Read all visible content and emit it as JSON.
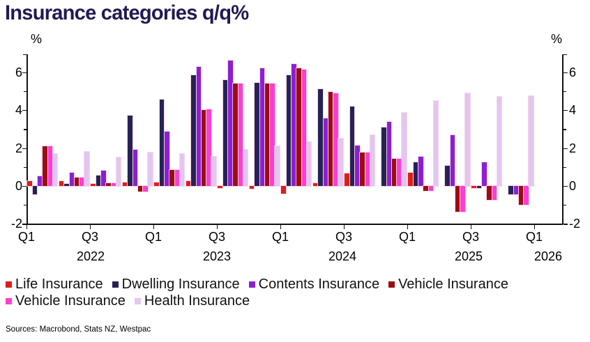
{
  "title": "Insurance categories q/q%",
  "y_axis": {
    "unit_label": "%",
    "labeled_ticks": [
      -2,
      0,
      2,
      4,
      6
    ],
    "minor_tick_step": 1,
    "min": -2,
    "max": 6.9
  },
  "x_axis": {
    "tick_labels": [
      "Q1",
      "Q3",
      "Q1",
      "Q3",
      "Q1",
      "Q3",
      "Q1",
      "Q3",
      "Q1"
    ],
    "years": [
      "2022",
      "2023",
      "2024",
      "2025",
      "2026"
    ]
  },
  "legend": {
    "rows": [
      [
        {
          "label": "Life Insurance",
          "color": "#dc1f16"
        },
        {
          "label": "Dwelling Insurance",
          "color": "#262254"
        },
        {
          "label": "Contents Insurance",
          "color": "#8c1fd1"
        },
        {
          "label": "Vehicle Insurance",
          "color": "#9a0d12"
        }
      ],
      [
        {
          "label": "Vehicle Insurance",
          "color": "#fb3ed1"
        },
        {
          "label": "Health Insurance",
          "color": "#e3c6f0"
        }
      ]
    ]
  },
  "sources": "Sources: Macrobond, Stats NZ, Westpac",
  "chart_data": {
    "type": "bar",
    "title": "Insurance categories q/q%",
    "ylabel": "%",
    "ylim": [
      -2,
      6.9
    ],
    "grid": false,
    "legend_position": "bottom",
    "categories": [
      "Q1 2022",
      "Q2 2022",
      "Q3 2022",
      "Q4 2022",
      "Q1 2023",
      "Q2 2023",
      "Q3 2023",
      "Q4 2023",
      "Q1 2024",
      "Q2 2024",
      "Q3 2024",
      "Q4 2024",
      "Q1 2025",
      "Q2 2025",
      "Q3 2025",
      "Q4 2025"
    ],
    "series": [
      {
        "name": "Life Insurance",
        "color": "#dc1f16",
        "values": [
          0.25,
          0.25,
          0.1,
          0.2,
          0.2,
          0.25,
          -0.1,
          -0.15,
          -0.4,
          0.15,
          0.65,
          null,
          0.7,
          null,
          -0.1,
          null
        ]
      },
      {
        "name": "Dwelling Insurance",
        "color": "#262254",
        "values": [
          -0.45,
          0.1,
          0.55,
          3.7,
          4.55,
          5.85,
          5.6,
          5.45,
          5.85,
          5.1,
          4.2,
          3.1,
          1.25,
          1.05,
          -0.1,
          -0.45
        ]
      },
      {
        "name": "Contents Insurance",
        "color": "#8c1fd1",
        "values": [
          0.5,
          0.7,
          0.8,
          1.9,
          2.85,
          6.3,
          6.6,
          6.2,
          6.45,
          3.55,
          2.15,
          3.4,
          1.55,
          2.7,
          1.25,
          -0.45
        ]
      },
      {
        "name": "Vehicle Insurance",
        "color": "#9a0d12",
        "values": [
          2.1,
          0.45,
          0.15,
          -0.3,
          0.85,
          4.0,
          5.4,
          5.4,
          6.2,
          4.95,
          1.75,
          1.45,
          -0.25,
          -1.35,
          -0.75,
          -1.0
        ]
      },
      {
        "name": "Vehicle Insurance",
        "color": "#fb3ed1",
        "values": [
          2.1,
          0.45,
          0.15,
          -0.3,
          0.85,
          4.05,
          5.4,
          5.4,
          6.15,
          4.9,
          1.75,
          1.45,
          -0.25,
          -1.35,
          -0.75,
          -1.0
        ]
      },
      {
        "name": "Health Insurance",
        "color": "#e3c6f0",
        "values": [
          1.7,
          1.8,
          1.5,
          1.75,
          1.7,
          1.55,
          1.9,
          2.1,
          2.3,
          2.5,
          2.7,
          3.85,
          4.5,
          4.9,
          4.7,
          4.75
        ]
      }
    ]
  }
}
